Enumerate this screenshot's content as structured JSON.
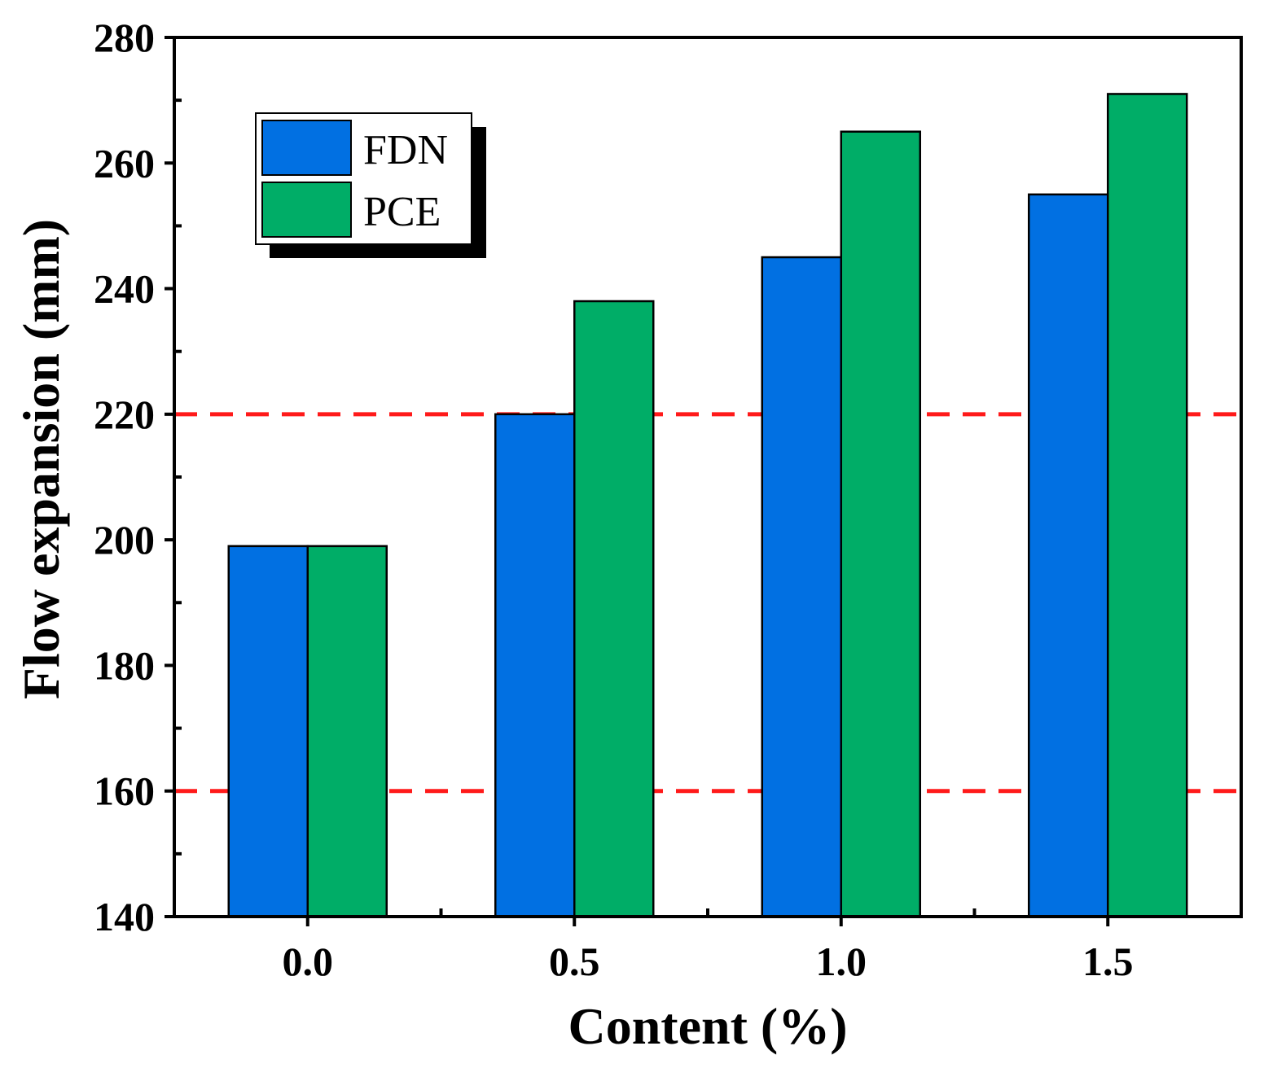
{
  "chart_data": {
    "type": "bar",
    "title": "",
    "xlabel": "Content (%)",
    "ylabel": "Flow expansion (mm)",
    "categories": [
      "0.0",
      "0.5",
      "1.0",
      "1.5"
    ],
    "series": [
      {
        "name": "FDN",
        "color": "#0170E2",
        "values": [
          199,
          220,
          245,
          255
        ]
      },
      {
        "name": "PCE",
        "color": "#00AD67",
        "values": [
          199,
          238,
          265,
          271
        ]
      }
    ],
    "ylim": [
      140,
      280
    ],
    "yticks": [
      "140",
      "160",
      "180",
      "200",
      "220",
      "240",
      "260",
      "280"
    ],
    "reference_lines": [
      {
        "y": 220,
        "color": "#FF1A1A",
        "style": "dashed"
      },
      {
        "y": 160,
        "color": "#FF1A1A",
        "style": "dashed"
      }
    ],
    "legend": {
      "position": "top-left",
      "shadow": true
    },
    "grid": false
  }
}
